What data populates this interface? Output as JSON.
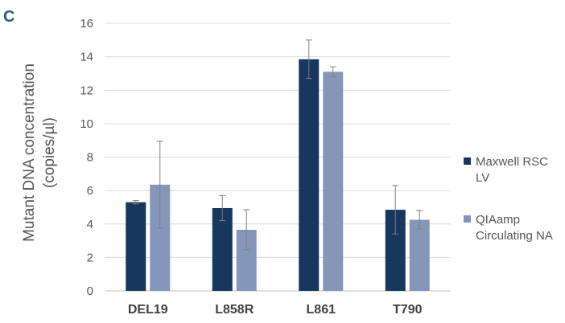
{
  "panel_label": "C",
  "chart_data": {
    "type": "bar",
    "categories": [
      "DEL19",
      "L858R",
      "L861",
      "T790"
    ],
    "ylabel_lines": [
      "Mutant DNA concentration",
      "(copies/µl)"
    ],
    "ylim": [
      0,
      16
    ],
    "yticks": [
      0,
      2,
      4,
      6,
      8,
      10,
      12,
      14,
      16
    ],
    "grid": true,
    "legend_position": "right",
    "series": [
      {
        "name_lines": [
          "Maxwell RSC",
          "LV"
        ],
        "color": "#17375e",
        "values": [
          5.3,
          4.95,
          13.85,
          4.85
        ],
        "error": [
          0.1,
          0.75,
          1.15,
          1.45
        ]
      },
      {
        "name_lines": [
          "QIAamp",
          "Circulating NA"
        ],
        "color": "#8497b9",
        "values": [
          6.35,
          3.65,
          13.1,
          4.25
        ],
        "error": [
          2.6,
          1.2,
          0.3,
          0.55
        ]
      }
    ]
  }
}
